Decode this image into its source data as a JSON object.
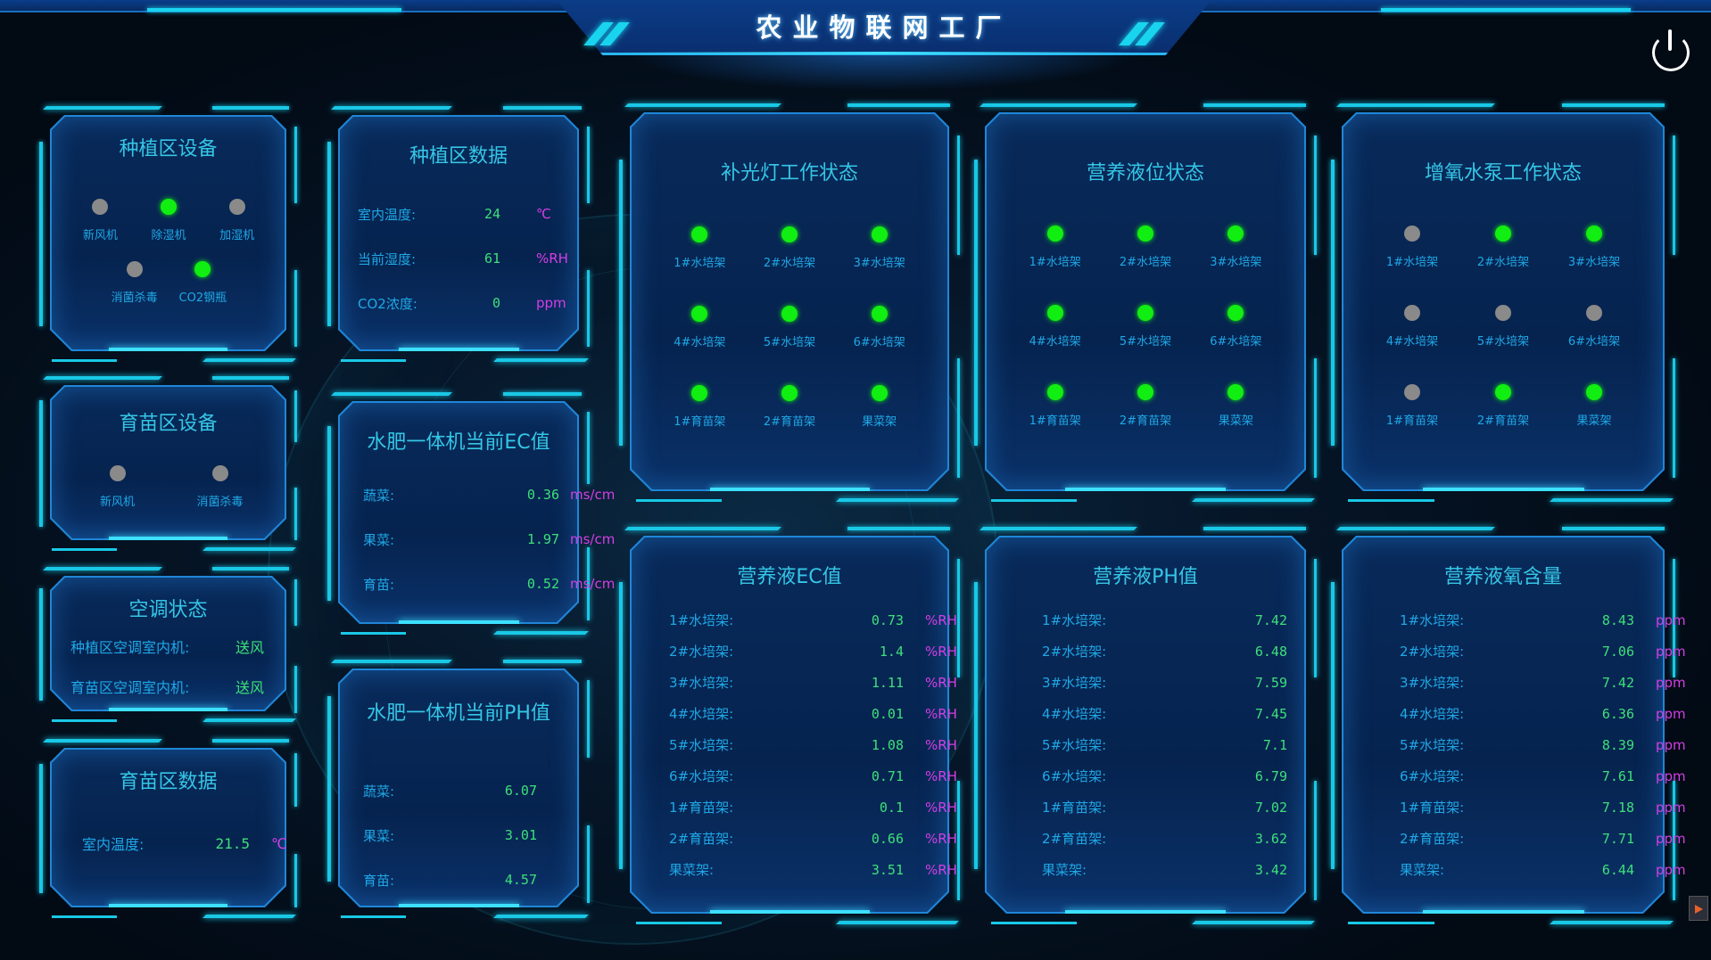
{
  "header": {
    "title": "农业物联网工厂",
    "power_icon": "power-icon"
  },
  "colors": {
    "on": "#11ee11",
    "off": "#8a8a8a",
    "value": "#3ee07a",
    "unit": "#d53ee6",
    "label": "#1fa8e6",
    "accent": "#19d4ef"
  },
  "planting_devices": {
    "title": "种植区设备",
    "items": [
      {
        "label": "新风机",
        "on": false
      },
      {
        "label": "除湿机",
        "on": true
      },
      {
        "label": "加湿机",
        "on": false
      },
      {
        "label": "消菌杀毒",
        "on": false
      },
      {
        "label": "CO2钢瓶",
        "on": true
      }
    ]
  },
  "planting_data": {
    "title": "种植区数据",
    "rows": [
      {
        "label": "室内温度:",
        "value": "24",
        "unit": "℃"
      },
      {
        "label": "当前湿度:",
        "value": "61",
        "unit": "%RH"
      },
      {
        "label": "CO2浓度:",
        "value": "0",
        "unit": "ppm"
      }
    ]
  },
  "seedling_devices": {
    "title": "育苗区设备",
    "items": [
      {
        "label": "新风机",
        "on": false
      },
      {
        "label": "消菌杀毒",
        "on": false
      }
    ]
  },
  "ac_status": {
    "title": "空调状态",
    "rows": [
      {
        "label": "种植区空调室内机:",
        "value": "送风"
      },
      {
        "label": "育苗区空调室内机:",
        "value": "送风"
      }
    ]
  },
  "seedling_data": {
    "title": "育苗区数据",
    "rows": [
      {
        "label": "室内温度:",
        "value": "21.5",
        "unit": "℃"
      }
    ]
  },
  "fert_ec": {
    "title": "水肥一体机当前EC值",
    "rows": [
      {
        "label": "蔬菜:",
        "value": "0.36",
        "unit": "ms/cm"
      },
      {
        "label": "果菜:",
        "value": "1.97",
        "unit": "ms/cm"
      },
      {
        "label": "育苗:",
        "value": "0.52",
        "unit": "ms/cm"
      }
    ]
  },
  "fert_ph": {
    "title": "水肥一体机当前PH值",
    "rows": [
      {
        "label": "蔬菜:",
        "value": "6.07"
      },
      {
        "label": "果菜:",
        "value": "3.01"
      },
      {
        "label": "育苗:",
        "value": "4.57"
      }
    ]
  },
  "grow_light": {
    "title": "补光灯工作状态",
    "items": [
      {
        "label": "1#水培架",
        "on": true
      },
      {
        "label": "2#水培架",
        "on": true
      },
      {
        "label": "3#水培架",
        "on": true
      },
      {
        "label": "4#水培架",
        "on": true
      },
      {
        "label": "5#水培架",
        "on": true
      },
      {
        "label": "6#水培架",
        "on": true
      },
      {
        "label": "1#育苗架",
        "on": true
      },
      {
        "label": "2#育苗架",
        "on": true
      },
      {
        "label": "果菜架",
        "on": true
      }
    ]
  },
  "liquid_level": {
    "title": "营养液位状态",
    "items": [
      {
        "label": "1#水培架",
        "on": true
      },
      {
        "label": "2#水培架",
        "on": true
      },
      {
        "label": "3#水培架",
        "on": true
      },
      {
        "label": "4#水培架",
        "on": true
      },
      {
        "label": "5#水培架",
        "on": true
      },
      {
        "label": "6#水培架",
        "on": true
      },
      {
        "label": "1#育苗架",
        "on": true
      },
      {
        "label": "2#育苗架",
        "on": true
      },
      {
        "label": "果菜架",
        "on": true
      }
    ]
  },
  "oxygen_pump": {
    "title": "增氧水泵工作状态",
    "items": [
      {
        "label": "1#水培架",
        "on": false
      },
      {
        "label": "2#水培架",
        "on": true
      },
      {
        "label": "3#水培架",
        "on": true
      },
      {
        "label": "4#水培架",
        "on": false
      },
      {
        "label": "5#水培架",
        "on": false
      },
      {
        "label": "6#水培架",
        "on": false
      },
      {
        "label": "1#育苗架",
        "on": false
      },
      {
        "label": "2#育苗架",
        "on": true
      },
      {
        "label": "果菜架",
        "on": true
      }
    ]
  },
  "nutrient_ec": {
    "title": "营养液EC值",
    "rows": [
      {
        "label": "1#水培架:",
        "value": "0.73",
        "unit": "%RH"
      },
      {
        "label": "2#水培架:",
        "value": "1.4",
        "unit": "%RH"
      },
      {
        "label": "3#水培架:",
        "value": "1.11",
        "unit": "%RH"
      },
      {
        "label": "4#水培架:",
        "value": "0.01",
        "unit": "%RH"
      },
      {
        "label": "5#水培架:",
        "value": "1.08",
        "unit": "%RH"
      },
      {
        "label": "6#水培架:",
        "value": "0.71",
        "unit": "%RH"
      },
      {
        "label": "1#育苗架:",
        "value": "0.1",
        "unit": "%RH"
      },
      {
        "label": "2#育苗架:",
        "value": "0.66",
        "unit": "%RH"
      },
      {
        "label": "果菜架:",
        "value": "3.51",
        "unit": "%RH"
      }
    ]
  },
  "nutrient_ph": {
    "title": "营养液PH值",
    "rows": [
      {
        "label": "1#水培架:",
        "value": "7.42"
      },
      {
        "label": "2#水培架:",
        "value": "6.48"
      },
      {
        "label": "3#水培架:",
        "value": "7.59"
      },
      {
        "label": "4#水培架:",
        "value": "7.45"
      },
      {
        "label": "5#水培架:",
        "value": "7.1"
      },
      {
        "label": "6#水培架:",
        "value": "6.79"
      },
      {
        "label": "1#育苗架:",
        "value": "7.02"
      },
      {
        "label": "2#育苗架:",
        "value": "3.62"
      },
      {
        "label": "果菜架:",
        "value": "3.42"
      }
    ]
  },
  "nutrient_oxygen": {
    "title": "营养液氧含量",
    "rows": [
      {
        "label": "1#水培架:",
        "value": "8.43",
        "unit": "ppm"
      },
      {
        "label": "2#水培架:",
        "value": "7.06",
        "unit": "ppm"
      },
      {
        "label": "3#水培架:",
        "value": "7.42",
        "unit": "ppm"
      },
      {
        "label": "4#水培架:",
        "value": "6.36",
        "unit": "ppm"
      },
      {
        "label": "5#水培架:",
        "value": "8.39",
        "unit": "ppm"
      },
      {
        "label": "6#水培架:",
        "value": "7.61",
        "unit": "ppm"
      },
      {
        "label": "1#育苗架:",
        "value": "7.18",
        "unit": "ppm"
      },
      {
        "label": "2#育苗架:",
        "value": "7.71",
        "unit": "ppm"
      },
      {
        "label": "果菜架:",
        "value": "6.44",
        "unit": "ppm"
      }
    ]
  }
}
